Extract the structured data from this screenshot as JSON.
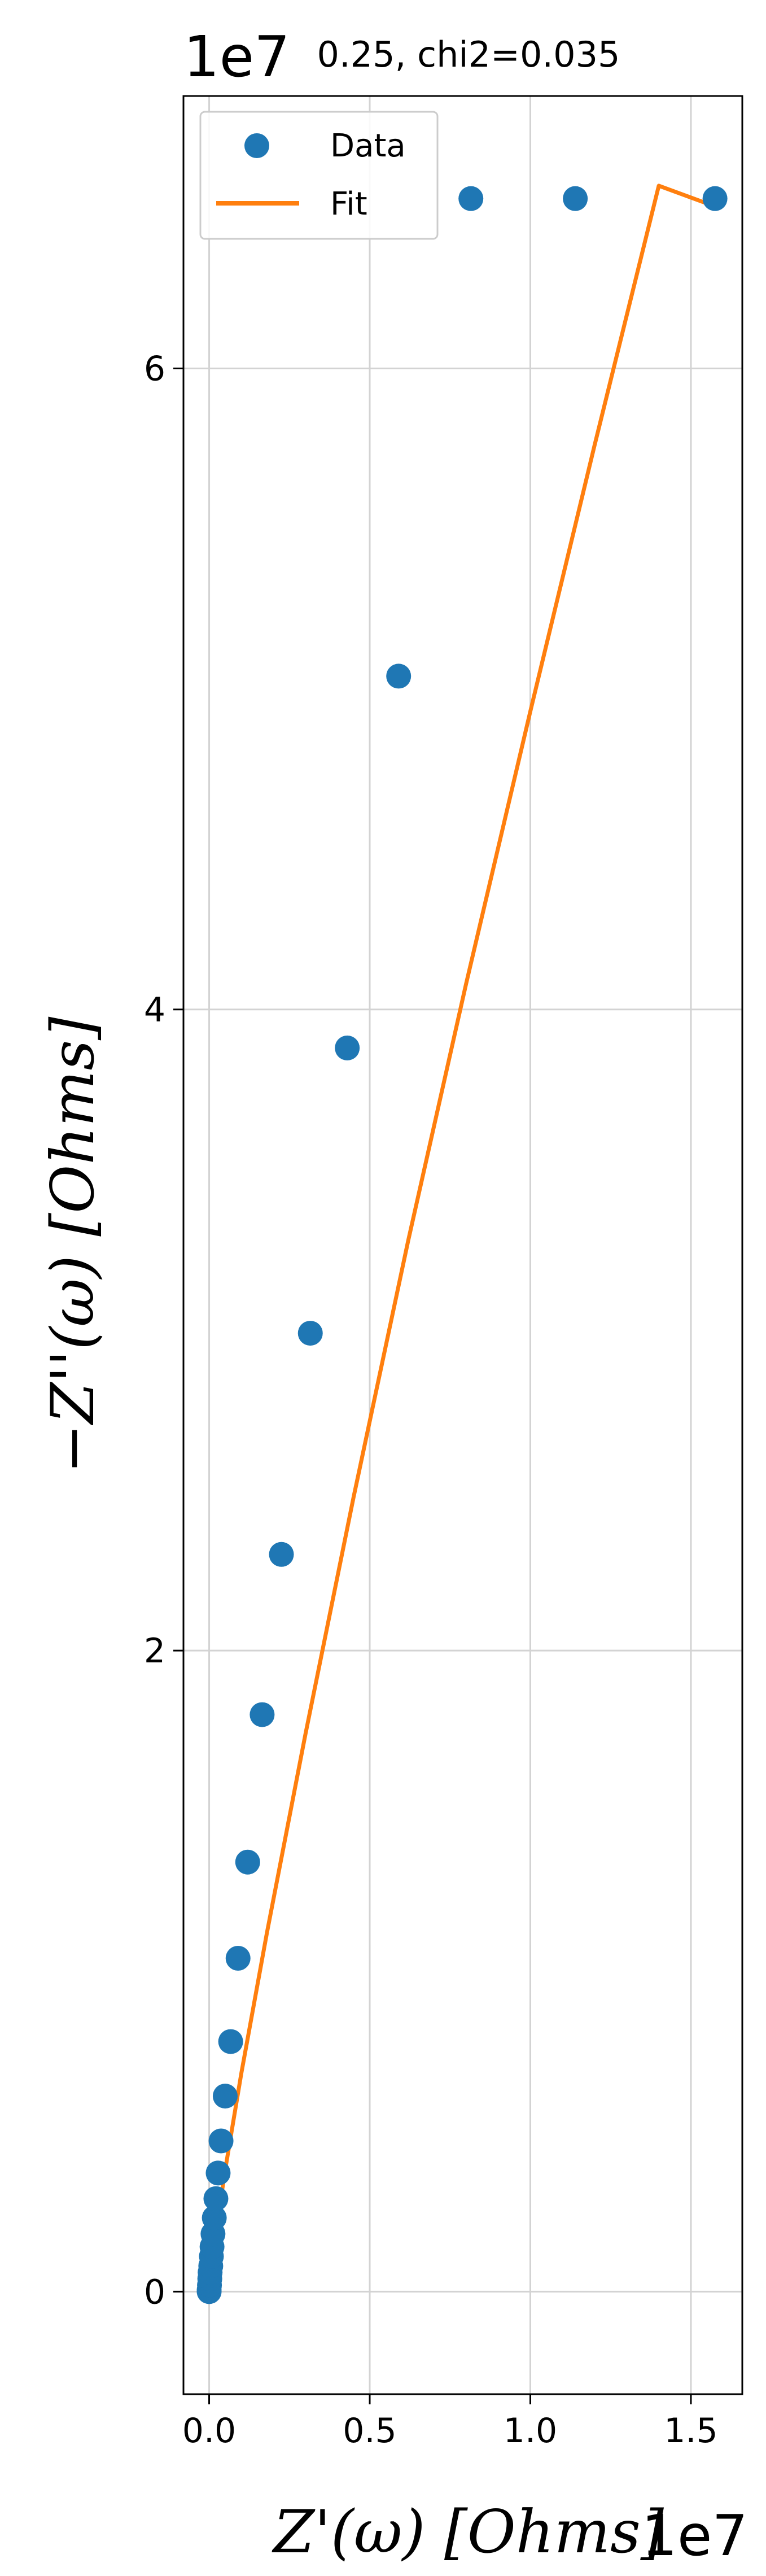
{
  "chart_data": {
    "type": "scatter",
    "title": "0.25, chi2=0.035",
    "xlabel": "Z'(ω) [Ohms]",
    "ylabel": "−Z''(ω) [Ohms]",
    "x_offset_label": "1e7",
    "y_offset_label": "1e7",
    "xlim": [
      -0.08,
      1.66
    ],
    "ylim": [
      -0.32,
      6.85
    ],
    "x_ticks": [
      0.0,
      0.5,
      1.0,
      1.5
    ],
    "x_tick_labels": [
      "0.0",
      "0.5",
      "1.0",
      "1.5"
    ],
    "y_ticks": [
      0,
      2,
      4,
      6
    ],
    "y_tick_labels": [
      "0",
      "2",
      "4",
      "6"
    ],
    "grid": true,
    "legend_position": "top-left",
    "units_note": "values in units of 1e7 Ohms",
    "series": [
      {
        "name": "Data",
        "kind": "markers",
        "color": "#1f77b4",
        "x": [
          0.0,
          0.0,
          0.001,
          0.002,
          0.003,
          0.005,
          0.007,
          0.009,
          0.012,
          0.016,
          0.021,
          0.028,
          0.037,
          0.05,
          0.067,
          0.09,
          0.12,
          0.165,
          0.225,
          0.315,
          0.43,
          0.59,
          0.815,
          1.14,
          1.575
        ],
        "y": [
          0.0,
          0.005,
          0.02,
          0.04,
          0.06,
          0.08,
          0.11,
          0.14,
          0.18,
          0.23,
          0.29,
          0.37,
          0.47,
          0.61,
          0.78,
          1.04,
          1.34,
          1.8,
          2.3,
          2.99,
          3.88,
          5.04,
          6.53,
          6.53,
          6.53
        ]
      },
      {
        "name": "Fit",
        "kind": "line",
        "color": "#ff7f0e",
        "x": [
          0.0,
          0.005,
          0.02,
          0.05,
          0.1,
          0.18,
          0.3,
          0.45,
          0.62,
          0.8,
          1.0,
          1.2,
          1.4,
          1.59
        ],
        "y": [
          0.0,
          0.06,
          0.18,
          0.38,
          0.68,
          1.12,
          1.74,
          2.48,
          3.28,
          4.08,
          4.93,
          5.76,
          6.57,
          6.5
        ]
      }
    ]
  }
}
